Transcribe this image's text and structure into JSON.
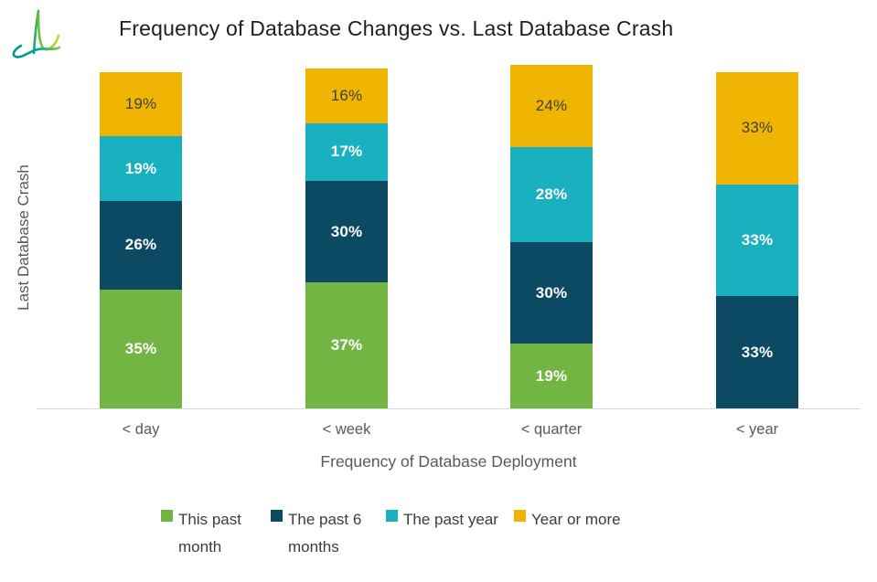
{
  "title": "Frequency of Database Changes vs. Last Database Crash",
  "icons": {
    "logo": "leaf-swoosh-brand-logo-icon"
  },
  "chart_data": {
    "type": "bar",
    "stacked": true,
    "orientation": "vertical",
    "title": "Frequency of Database Changes vs. Last Database Crash",
    "xlabel": "Frequency of Database Deployment",
    "ylabel": "Last Database Crash",
    "categories": [
      "< day",
      "< week",
      "< quarter",
      "< year"
    ],
    "series": [
      {
        "name": "This past month",
        "color": "#73B543",
        "values": [
          35,
          37,
          19,
          0
        ],
        "label_style": "white-bold"
      },
      {
        "name": "The past 6 months",
        "color": "#0C4A64",
        "values": [
          26,
          30,
          30,
          33
        ],
        "label_style": "white-bold"
      },
      {
        "name": "The past year",
        "color": "#19B0C0",
        "values": [
          19,
          17,
          28,
          33
        ],
        "label_style": "white-bold"
      },
      {
        "name": "Year or more",
        "color": "#F0B502",
        "values": [
          19,
          16,
          24,
          33
        ],
        "label_style": "dark-normal"
      }
    ],
    "segment_labels": {
      "< day": [
        "35%",
        "26%",
        "19%",
        "19%"
      ],
      "< week": [
        "37%",
        "30%",
        "17%",
        "16%"
      ],
      "< quarter": [
        "19%",
        "30%",
        "28%",
        "24%"
      ],
      "< year": [
        "",
        "33%",
        "33%",
        "33%"
      ]
    },
    "value_suffix": "%",
    "ylim": [
      0,
      100
    ],
    "gridlines": false,
    "axis_line_color": "#D9D9D9",
    "legend_position": "bottom",
    "label_colors": {
      "on_dark_segments": "#FFFFFF",
      "on_yellow_segment": "#3F3F3F"
    }
  }
}
